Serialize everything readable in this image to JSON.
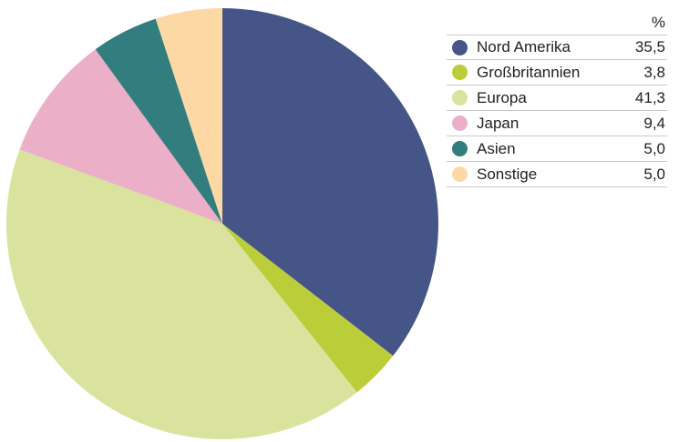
{
  "chart_data": {
    "type": "pie",
    "unit_header": "%",
    "categories": [
      "Nord Amerika",
      "Großbritannien",
      "Europa",
      "Japan",
      "Asien",
      "Sonstige"
    ],
    "values": [
      35.5,
      3.8,
      41.3,
      9.4,
      5.0,
      5.0
    ],
    "value_labels": [
      "35,5",
      "3,8",
      "41,3",
      "9,4",
      "5,0",
      "5,0"
    ],
    "colors": [
      "#465588",
      "#bccd3a",
      "#d9e39d",
      "#ebb0c8",
      "#327d7e",
      "#fcd9a4"
    ],
    "start_angle": "12 o'clock",
    "direction": "clockwise",
    "legend_position": "top-right"
  }
}
